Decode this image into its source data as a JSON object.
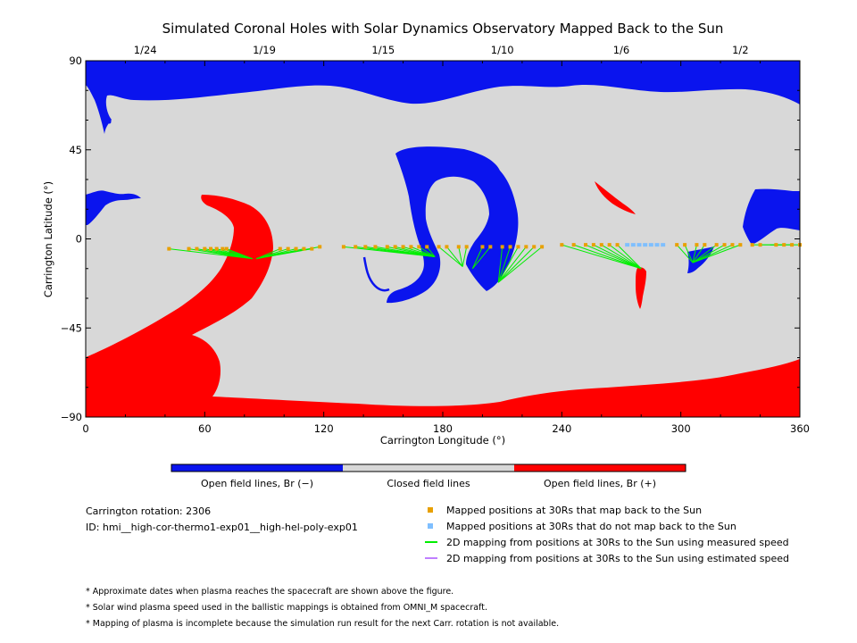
{
  "chart_data": {
    "type": "scatter",
    "title": "Simulated Coronal Holes with Solar Dynamics Observatory Mapped Back to the Sun",
    "xlabel": "Carrington Longitude (°)",
    "ylabel": "Carrington Latitude (°)",
    "xlim": [
      0,
      360
    ],
    "ylim": [
      -90,
      90
    ],
    "xticks": [
      0,
      60,
      120,
      180,
      240,
      300,
      360
    ],
    "yticks": [
      -90,
      -45,
      0,
      45,
      90
    ],
    "top_axis": {
      "label_note": "Approximate dates when plasma reaches the spacecraft",
      "ticks": [
        {
          "x": 30,
          "label": "1/24"
        },
        {
          "x": 90,
          "label": "1/19"
        },
        {
          "x": 150,
          "label": "1/15"
        },
        {
          "x": 210,
          "label": "1/10"
        },
        {
          "x": 270,
          "label": "1/6"
        },
        {
          "x": 330,
          "label": "1/2"
        }
      ]
    },
    "colors": {
      "open_negative": "#0a14ee",
      "closed": "#d8d8d8",
      "open_positive": "#ff0000",
      "mapped": "#e8a000",
      "not_mapped": "#7fbfff",
      "measured_speed": "#00ee00",
      "estimated_speed": "#bf7fff"
    },
    "colorbar": [
      {
        "label": "Open field lines, Br (−)",
        "color": "#0a14ee"
      },
      {
        "label": "Closed field lines",
        "color": "#d8d8d8"
      },
      {
        "label": "Open field lines, Br (+)",
        "color": "#ff0000"
      }
    ],
    "legend": [
      {
        "label": "Mapped positions at 30Rs that map back to the Sun",
        "color": "#e8a000",
        "kind": "square"
      },
      {
        "label": "Mapped positions at 30Rs that do not map back to the Sun",
        "color": "#7fbfff",
        "kind": "square"
      },
      {
        "label": "2D mapping from positions at 30Rs to the Sun using measured speed",
        "color": "#00ee00",
        "kind": "line"
      },
      {
        "label": "2D mapping from positions at 30Rs to the Sun using estimated speed",
        "color": "#bf7fff",
        "kind": "line"
      }
    ],
    "mappings": [
      {
        "footpoint": [
          84,
          -10
        ],
        "sources": [
          [
            42,
            -5
          ],
          [
            52,
            -5
          ],
          [
            56,
            -5
          ],
          [
            60,
            -5
          ],
          [
            63,
            -5
          ],
          [
            66,
            -5
          ],
          [
            69,
            -5
          ],
          [
            71,
            -5
          ]
        ]
      },
      {
        "footpoint": [
          86,
          -10
        ],
        "sources": [
          [
            98,
            -5
          ],
          [
            102,
            -5
          ],
          [
            106,
            -5
          ],
          [
            110,
            -5
          ],
          [
            114,
            -5
          ],
          [
            118,
            -4
          ]
        ]
      },
      {
        "footpoint": [
          176,
          -9
        ],
        "sources": [
          [
            130,
            -4
          ],
          [
            136,
            -4
          ],
          [
            141,
            -4
          ],
          [
            146,
            -4
          ],
          [
            152,
            -4
          ],
          [
            156,
            -4
          ],
          [
            160,
            -4
          ],
          [
            164,
            -4
          ],
          [
            168,
            -4
          ],
          [
            172,
            -4
          ]
        ]
      },
      {
        "footpoint": [
          190,
          -14
        ],
        "sources": [
          [
            178,
            -4
          ],
          [
            182,
            -4
          ],
          [
            188,
            -4
          ],
          [
            192,
            -4
          ]
        ]
      },
      {
        "footpoint": [
          195,
          -15
        ],
        "sources": [
          [
            200,
            -4
          ],
          [
            204,
            -4
          ]
        ]
      },
      {
        "footpoint": [
          208,
          -22
        ],
        "sources": [
          [
            210,
            -4
          ],
          [
            214,
            -4
          ],
          [
            218,
            -4
          ],
          [
            222,
            -4
          ],
          [
            226,
            -4
          ],
          [
            230,
            -4
          ]
        ]
      },
      {
        "footpoint": [
          280,
          -15
        ],
        "sources": [
          [
            240,
            -3
          ],
          [
            246,
            -3
          ],
          [
            252,
            -3
          ],
          [
            256,
            -3
          ],
          [
            260,
            -3
          ],
          [
            264,
            -3
          ],
          [
            268,
            -3
          ]
        ]
      },
      {
        "footpoint": [
          306,
          -12
        ],
        "sources": [
          [
            298,
            -3
          ],
          [
            302,
            -3
          ],
          [
            308,
            -3
          ],
          [
            312,
            -3
          ],
          [
            318,
            -3
          ],
          [
            322,
            -3
          ],
          [
            326,
            -3
          ],
          [
            330,
            -3
          ]
        ]
      },
      {
        "footpoint": [
          345,
          -3
        ],
        "sources": [
          [
            336,
            -3
          ],
          [
            340,
            -3
          ],
          [
            348,
            -3
          ],
          [
            352,
            -3
          ],
          [
            356,
            -3
          ],
          [
            360,
            -3
          ]
        ]
      }
    ],
    "not_mapped_points": [
      [
        273,
        -3
      ],
      [
        276,
        -3
      ],
      [
        279,
        -3
      ],
      [
        282,
        -3
      ],
      [
        285,
        -3
      ],
      [
        288,
        -3
      ],
      [
        291,
        -3
      ]
    ],
    "grid": false
  },
  "info": {
    "rotation": "Carrington rotation: 2306",
    "id": "ID: hmi__high-cor-thermo1-exp01__high-hel-poly-exp01"
  },
  "footnotes": [
    "* Approximate dates when plasma reaches the spacecraft are shown above the figure.",
    "* Solar wind plasma speed used in the ballistic mappings is obtained from OMNI_M spacecraft.",
    "* Mapping of plasma is incomplete because the simulation run result for the next Carr. rotation is not available."
  ]
}
